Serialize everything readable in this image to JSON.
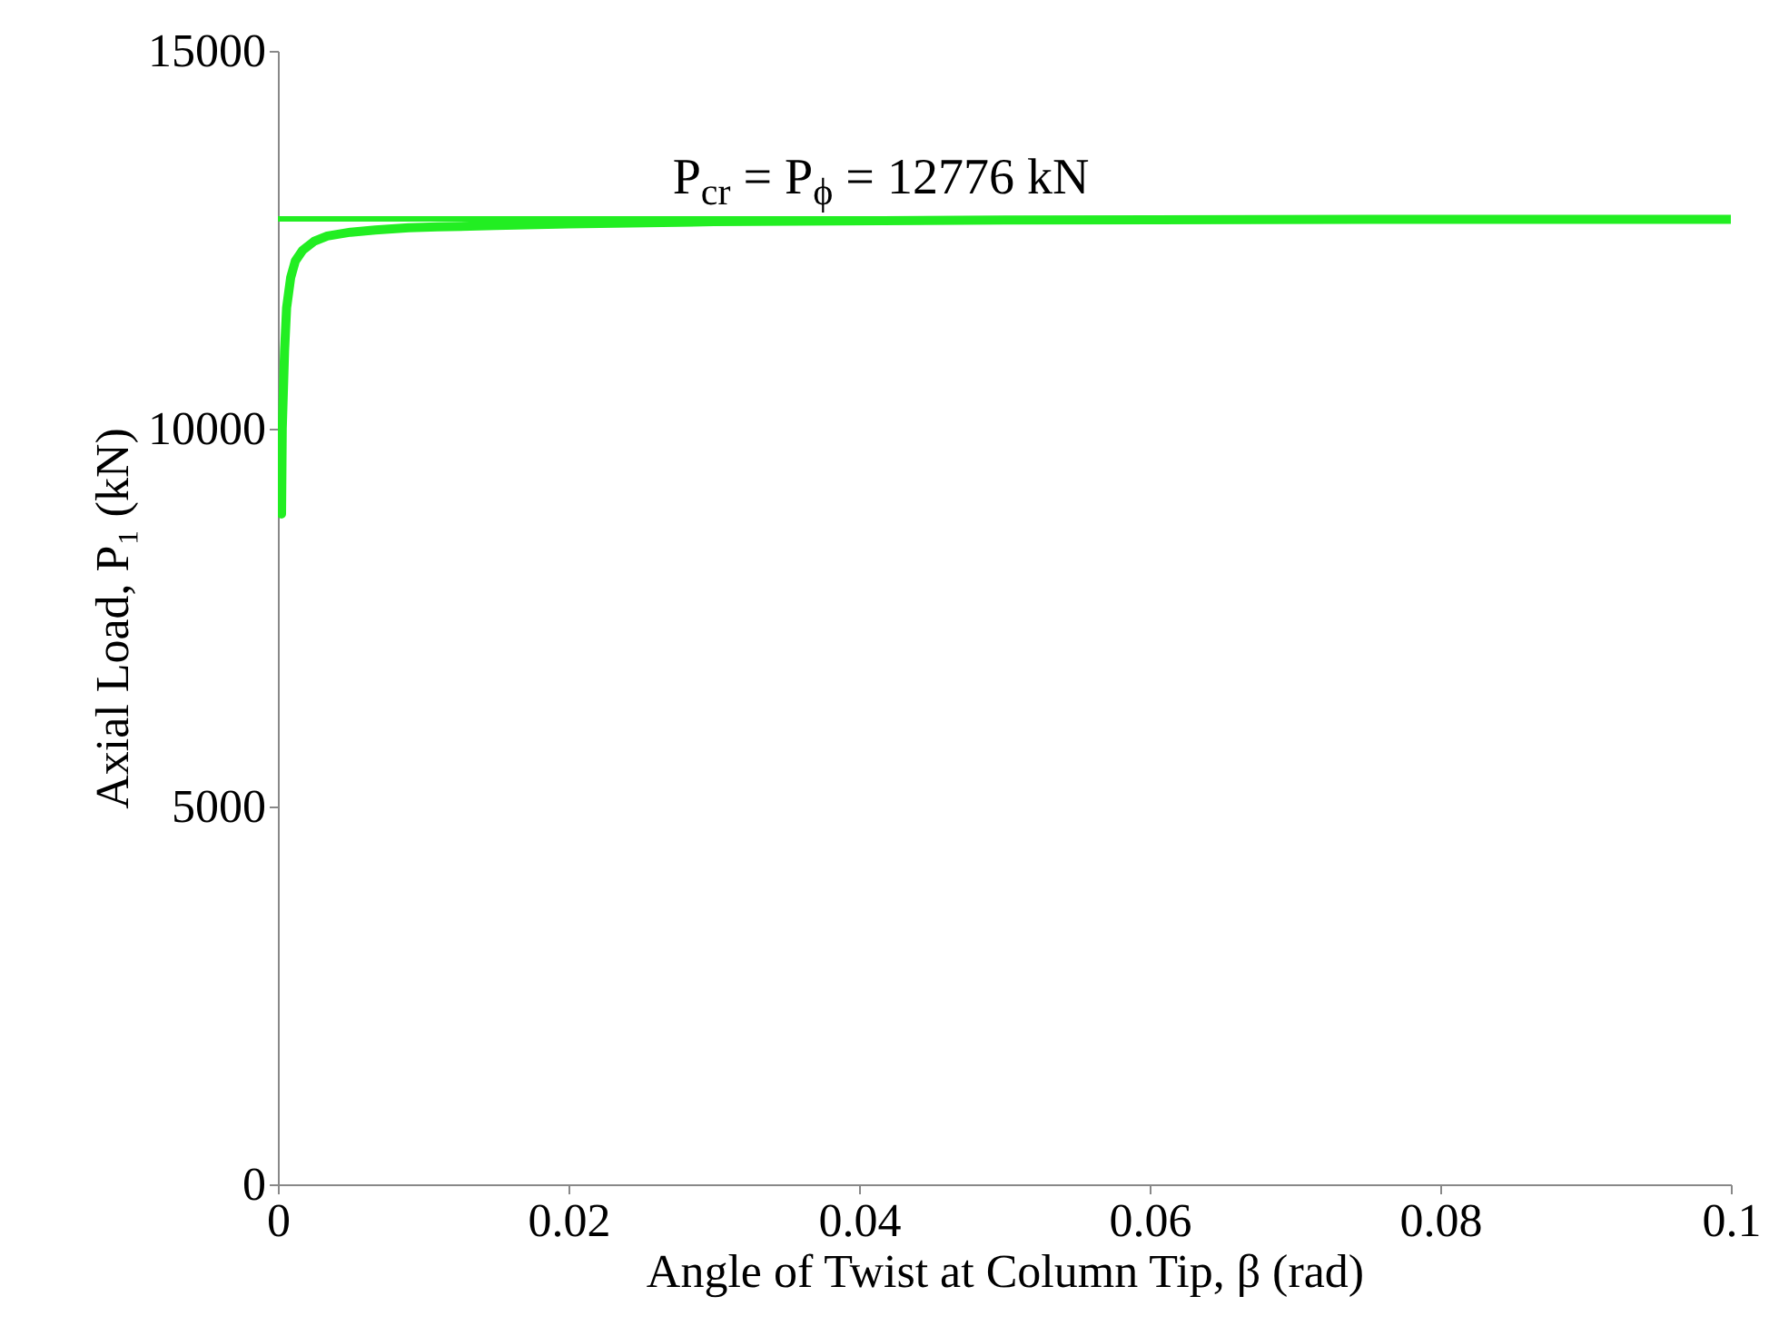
{
  "chart_data": {
    "type": "line",
    "xlabel": "Angle of Twist at Column Tip, β (rad)",
    "ylabel": "Axial Load, P₁ (kN)",
    "x": [
      0.00025,
      0.0003,
      0.00046,
      0.0006,
      0.00088,
      0.0012,
      0.0017,
      0.0025,
      0.0034,
      0.005,
      0.0067,
      0.009,
      0.011,
      0.015,
      0.02,
      0.03,
      0.05,
      0.075,
      0.1
    ],
    "series": [
      {
        "color": "#22ee22",
        "values": [
          8870,
          10000,
          11030,
          11600,
          12000,
          12220,
          12360,
          12480,
          12550,
          12600,
          12630,
          12660,
          12670,
          12690,
          12710,
          12740,
          12760,
          12770,
          12770
        ]
      }
    ],
    "xlim": [
      0,
      0.1
    ],
    "xticks": [
      0,
      0.02,
      0.04,
      0.06,
      0.08,
      0.1
    ],
    "ylim": [
      0,
      15000
    ],
    "yticks": [
      0,
      5000,
      10000,
      15000
    ],
    "grid": false,
    "marker": "none",
    "line_style": "solid",
    "ref_lines": [
      {
        "axis": "y",
        "value": 12776,
        "color": "#22ee22",
        "line_style": "solid",
        "label": "P$_{cr}$ = P$_{ϕ}$ = 12776 kN"
      }
    ]
  }
}
